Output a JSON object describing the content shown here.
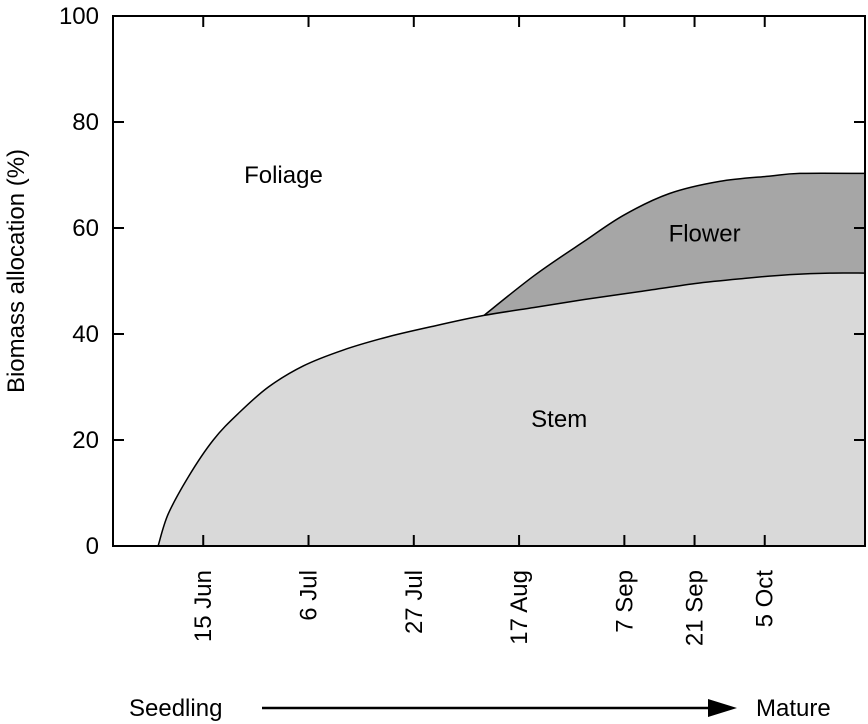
{
  "chart_data": {
    "type": "area",
    "title": "",
    "ylabel": "Biomass allocation (%)",
    "xlabel": "",
    "ylim": [
      0,
      100
    ],
    "yticks": [
      0,
      20,
      40,
      60,
      80,
      100
    ],
    "x_axis": {
      "type": "date",
      "range": [
        "2001-05-28",
        "2001-10-25"
      ],
      "ticks": [
        {
          "date": "2001-06-15",
          "label": "15 Jun"
        },
        {
          "date": "2001-07-06",
          "label": "6 Jul"
        },
        {
          "date": "2001-07-27",
          "label": "27 Jul"
        },
        {
          "date": "2001-08-17",
          "label": "17 Aug"
        },
        {
          "date": "2001-09-07",
          "label": "7 Sep"
        },
        {
          "date": "2001-09-21",
          "label": "21 Sep"
        },
        {
          "date": "2001-10-05",
          "label": "5 Oct"
        }
      ]
    },
    "grid": false,
    "legend": "none",
    "series": [
      {
        "key": "stem",
        "name": "Stem",
        "fill": "#d9d9d9",
        "points": [
          {
            "x": "2001-06-06",
            "y": 0
          },
          {
            "x": "2001-06-08",
            "y": 6
          },
          {
            "x": "2001-06-12",
            "y": 13
          },
          {
            "x": "2001-06-17",
            "y": 20
          },
          {
            "x": "2001-06-22",
            "y": 25
          },
          {
            "x": "2001-06-28",
            "y": 30
          },
          {
            "x": "2001-07-05",
            "y": 34
          },
          {
            "x": "2001-07-13",
            "y": 37
          },
          {
            "x": "2001-07-22",
            "y": 39.5
          },
          {
            "x": "2001-07-31",
            "y": 41.5
          },
          {
            "x": "2001-08-10",
            "y": 43.5
          },
          {
            "x": "2001-08-20",
            "y": 45
          },
          {
            "x": "2001-08-30",
            "y": 46.5
          },
          {
            "x": "2001-09-10",
            "y": 48
          },
          {
            "x": "2001-09-21",
            "y": 49.5
          },
          {
            "x": "2001-10-01",
            "y": 50.5
          },
          {
            "x": "2001-10-10",
            "y": 51.2
          },
          {
            "x": "2001-10-18",
            "y": 51.5
          },
          {
            "x": "2001-10-25",
            "y": 51.5
          }
        ]
      },
      {
        "key": "flower",
        "name": "Flower",
        "fill": "#a6a6a6",
        "points": [
          {
            "x": "2001-08-10",
            "y": 43.5
          },
          {
            "x": "2001-08-20",
            "y": 51
          },
          {
            "x": "2001-08-30",
            "y": 57.5
          },
          {
            "x": "2001-09-07",
            "y": 62.5
          },
          {
            "x": "2001-09-16",
            "y": 66.5
          },
          {
            "x": "2001-09-26",
            "y": 68.8
          },
          {
            "x": "2001-10-06",
            "y": 69.8
          },
          {
            "x": "2001-10-12",
            "y": 70.3
          },
          {
            "x": "2001-10-25",
            "y": 70.3
          }
        ]
      },
      {
        "key": "foliage",
        "name": "Foliage",
        "fill": "#ffffff",
        "points": []
      }
    ],
    "region_labels": [
      {
        "key": "foliage",
        "text": "Foliage",
        "x": "2001-07-01",
        "y": 70
      },
      {
        "key": "flower",
        "text": "Flower",
        "x": "2001-09-23",
        "y": 59
      },
      {
        "key": "stem",
        "text": "Stem",
        "x": "2001-08-25",
        "y": 24
      }
    ],
    "stage_arrow": {
      "start": "Seedling",
      "end": "Mature"
    }
  }
}
